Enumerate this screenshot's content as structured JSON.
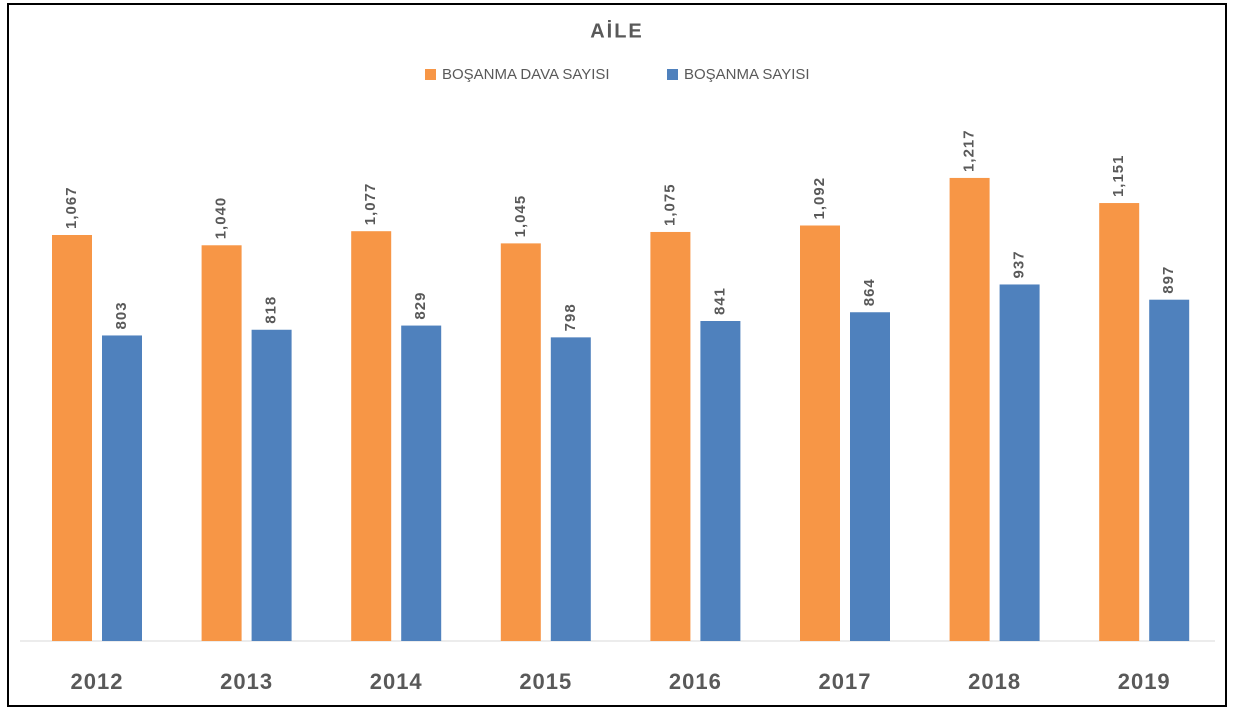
{
  "chart_data": {
    "type": "bar",
    "title": "AİLE",
    "categories": [
      "2012",
      "2013",
      "2014",
      "2015",
      "2016",
      "2017",
      "2018",
      "2019"
    ],
    "series": [
      {
        "name": "BOŞANMA DAVA SAYISI",
        "color": "#f79646",
        "values": [
          1067,
          1040,
          1077,
          1045,
          1075,
          1092,
          1217,
          1151
        ],
        "value_labels": [
          "1,067",
          "1,040",
          "1,077",
          "1,045",
          "1,075",
          "1,092",
          "1,217",
          "1,151"
        ]
      },
      {
        "name": "BOŞANMA SAYISI",
        "color": "#4f81bd",
        "values": [
          803,
          818,
          829,
          798,
          841,
          864,
          937,
          897
        ]
      }
    ],
    "legend": "top"
  }
}
